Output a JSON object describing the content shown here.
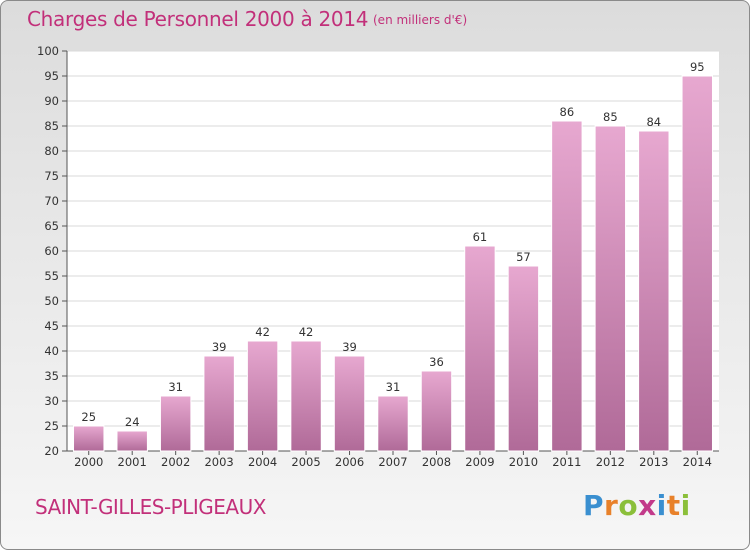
{
  "header": {
    "title": "Charges de Personnel 2000 à 2014",
    "subtitle": "(en milliers d'€)"
  },
  "footer": {
    "commune": "SAINT-GILLES-PLIGEAUX",
    "logo": {
      "text": "Proxiti",
      "letters": [
        {
          "ch": "P",
          "color": "#3a8fd0"
        },
        {
          "ch": "r",
          "color": "#e8812a"
        },
        {
          "ch": "o",
          "color": "#8bbf3a"
        },
        {
          "ch": "x",
          "color": "#c23a8a"
        },
        {
          "ch": "i",
          "color": "#3a8fd0"
        },
        {
          "ch": "t",
          "color": "#e8812a"
        },
        {
          "ch": "i",
          "color": "#8bbf3a"
        }
      ]
    }
  },
  "colors": {
    "accent": "#c2307a",
    "bar_top": "#e7a8d0",
    "bar_bottom": "#b06a98",
    "bar_stroke": "#ffffff",
    "plot_background": "#ffffff",
    "grid": "#d9d9d9"
  },
  "chart_data": {
    "type": "bar",
    "title": "Charges de Personnel 2000 à 2014",
    "subtitle": "(en milliers d'€)",
    "xlabel": "",
    "ylabel": "",
    "categories": [
      "2000",
      "2001",
      "2002",
      "2003",
      "2004",
      "2005",
      "2006",
      "2007",
      "2008",
      "2009",
      "2010",
      "2011",
      "2012",
      "2013",
      "2014"
    ],
    "values": [
      25,
      24,
      31,
      39,
      42,
      42,
      39,
      31,
      36,
      61,
      57,
      86,
      85,
      84,
      95
    ],
    "ylim": [
      20,
      100
    ],
    "yticks": [
      20,
      25,
      30,
      35,
      40,
      45,
      50,
      55,
      60,
      65,
      70,
      75,
      80,
      85,
      90,
      95,
      100
    ],
    "grid": true,
    "data_labels": true
  }
}
